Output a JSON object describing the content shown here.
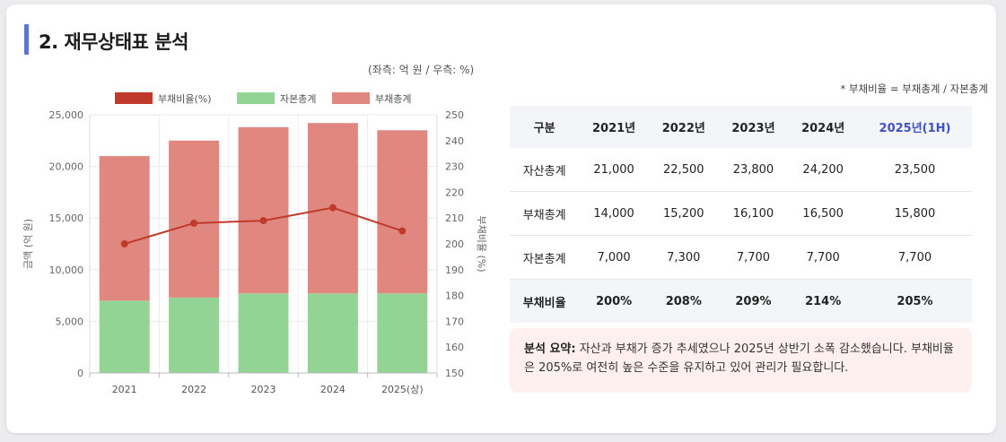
{
  "section": {
    "title": "2. 재무상태표 분석",
    "unit_note": "(좌측: 억 원 / 우측: %)",
    "formula_note": "* 부채비율 = 부채총계 / 자본총계"
  },
  "chart_data": {
    "type": "bar",
    "stacked": true,
    "categories": [
      "2021",
      "2022",
      "2023",
      "2024",
      "2025(상)"
    ],
    "series": [
      {
        "name": "자본총계",
        "type": "bar",
        "axis": "left",
        "color": "#93d494",
        "values": [
          7000,
          7300,
          7700,
          7700,
          7700
        ]
      },
      {
        "name": "부채총계",
        "type": "bar",
        "axis": "left",
        "color": "#e08880",
        "values": [
          14000,
          15200,
          16100,
          16500,
          15800
        ]
      },
      {
        "name": "부채비율(%)",
        "type": "line",
        "axis": "right",
        "color": "#c0392b",
        "values": [
          200,
          208,
          209,
          214,
          205
        ]
      }
    ],
    "legend_order": [
      "부채비율(%)",
      "자본총계",
      "부채총계"
    ],
    "legend_position": "top",
    "ylabel": "금액 (억 원)",
    "y2label": "부채비율 (%)",
    "ylim": [
      0,
      25000
    ],
    "y2lim": [
      150,
      250
    ],
    "yticks": [
      "0",
      "5,000",
      "10,000",
      "15,000",
      "20,000",
      "25,000"
    ],
    "y2ticks": [
      "150",
      "160",
      "170",
      "180",
      "190",
      "200",
      "210",
      "220",
      "230",
      "240",
      "250"
    ],
    "grid": true
  },
  "table": {
    "headers": [
      "구분",
      "2021년",
      "2022년",
      "2023년",
      "2024년",
      "2025년(1H)"
    ],
    "rows": [
      {
        "label": "자산총계",
        "values": [
          "21,000",
          "22,500",
          "23,800",
          "24,200",
          "23,500"
        ]
      },
      {
        "label": "부채총계",
        "values": [
          "14,000",
          "15,200",
          "16,100",
          "16,500",
          "15,800"
        ]
      },
      {
        "label": "자본총계",
        "values": [
          "7,000",
          "7,300",
          "7,700",
          "7,700",
          "7,700"
        ]
      },
      {
        "label": "부채비율",
        "values": [
          "200%",
          "208%",
          "209%",
          "214%",
          "205%"
        ]
      }
    ]
  },
  "summary": {
    "label": "분석 요약:",
    "text": "자산과 부채가 증가 추세였으나 2025년 상반기 소폭 감소했습니다. 부채비율은 205%로 여전히 높은 수준을 유지하고 있어 관리가 필요합니다."
  },
  "colors": {
    "accent": "#5b74d6",
    "debt": "#e08880",
    "equity": "#93d494",
    "ratio": "#c0392b",
    "highlight": "#3f51c5"
  }
}
